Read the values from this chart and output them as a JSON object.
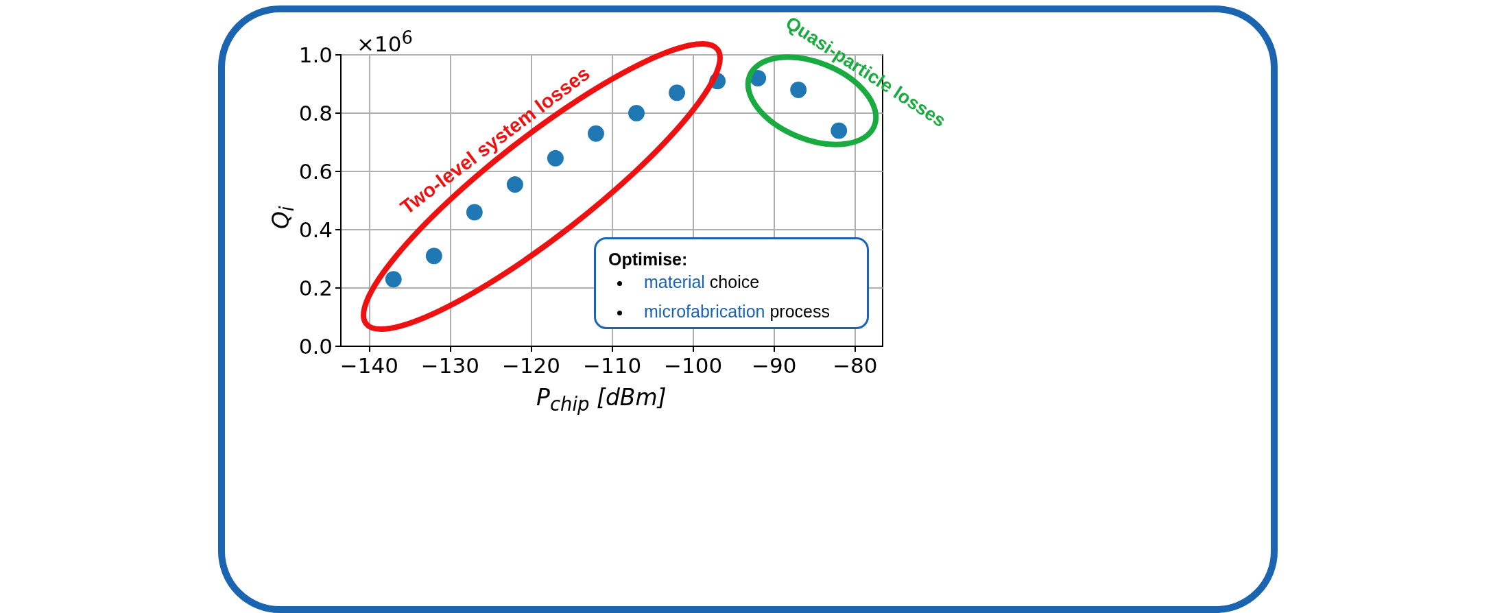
{
  "chart_data": {
    "type": "scatter",
    "xlabel": "P$_{chip}$ [dBm]",
    "ylabel": "Q$_{i}$",
    "x": [
      -137,
      -132,
      -127,
      -122,
      -117,
      -112,
      -107,
      -102,
      -97,
      -92,
      -87,
      -82
    ],
    "series": [
      {
        "color": "#1f77b4",
        "values": [
          0.23,
          0.31,
          0.46,
          0.555,
          0.645,
          0.73,
          0.8,
          0.87,
          0.91,
          0.92,
          0.88,
          0.74
        ]
      }
    ],
    "xlim": [
      -143.5,
      -76.6
    ],
    "xticks": [
      -140,
      -130,
      -120,
      -110,
      -100,
      -90,
      -80
    ],
    "ylim": [
      0,
      1
    ],
    "yticks": [
      {
        "value": 0,
        "label": "0.0"
      },
      {
        "value": 0.2,
        "label": "0.2"
      },
      {
        "value": 0.4,
        "label": "0.4"
      },
      {
        "value": 0.6,
        "label": "0.6"
      },
      {
        "value": 0.8,
        "label": "0.8"
      },
      {
        "value": 1,
        "label": "1.0"
      }
    ],
    "grid": true,
    "marker": "circle",
    "annotations": [
      "×10$^{6}$",
      "Two-level system losses",
      "Quasi-particle losses",
      "Optimise:",
      "material choice",
      "microfabrication process"
    ]
  }
}
